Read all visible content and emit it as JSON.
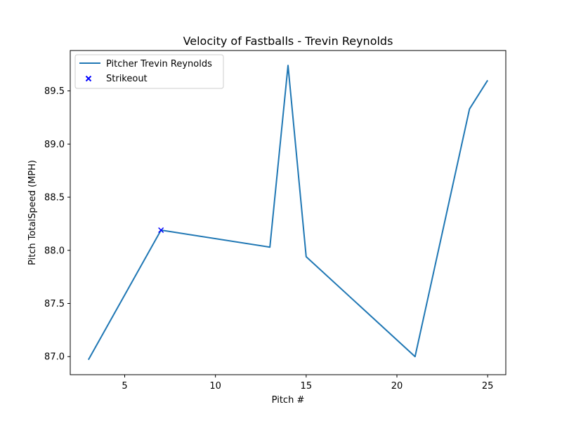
{
  "chart_data": {
    "type": "line",
    "title": "Velocity of Fastballs - Trevin Reynolds",
    "xlabel": "Pitch #",
    "ylabel": "Pitch TotalSpeed (MPH)",
    "xlim": [
      2.0,
      26.0
    ],
    "ylim": [
      86.83,
      89.88
    ],
    "xticks": [
      5,
      10,
      15,
      20,
      25
    ],
    "yticks": [
      87.0,
      87.5,
      88.0,
      88.5,
      89.0,
      89.5
    ],
    "xtick_labels": [
      "5",
      "10",
      "15",
      "20",
      "25"
    ],
    "ytick_labels": [
      "87.0",
      "87.5",
      "88.0",
      "88.5",
      "89.0",
      "89.5"
    ],
    "grid": false,
    "legend_position": "top-left",
    "series": [
      {
        "name": "Pitcher Trevin Reynolds",
        "color": "#1f77b4",
        "marker": "none",
        "x": [
          3,
          7,
          13,
          14,
          15,
          21,
          24,
          25
        ],
        "y": [
          86.97,
          88.19,
          88.03,
          89.74,
          87.94,
          87.0,
          89.33,
          89.6
        ]
      },
      {
        "name": "Strikeout",
        "color": "#0000ff",
        "marker": "x",
        "x": [
          7
        ],
        "y": [
          88.19
        ]
      }
    ]
  }
}
